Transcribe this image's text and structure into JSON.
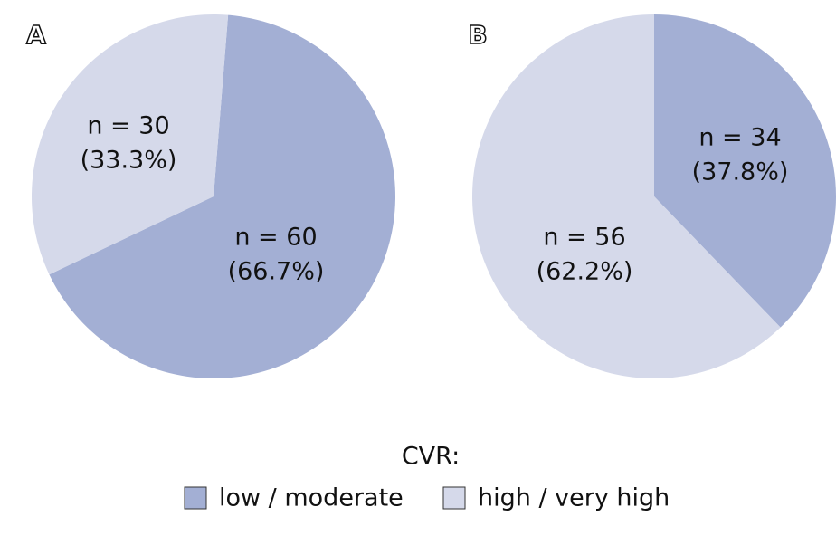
{
  "chart_data": [
    {
      "type": "pie",
      "panel": "A",
      "values": [
        60,
        30
      ],
      "value_labels": [
        "n = 60",
        "n = 30"
      ],
      "percents": [
        66.7,
        33.3
      ],
      "percent_labels": [
        "(66.7%)",
        "(33.3%)"
      ]
    },
    {
      "type": "pie",
      "panel": "B",
      "values": [
        34,
        56
      ],
      "value_labels": [
        "n = 34",
        "n = 56"
      ],
      "percents": [
        37.8,
        62.2
      ],
      "percent_labels": [
        "(37.8%)",
        "(62.2%)"
      ]
    }
  ],
  "legend": {
    "title": "CVR:",
    "series": [
      {
        "name": "low / moderate",
        "color": "#a3afd4"
      },
      {
        "name": "high / very high",
        "color": "#d5d9ea"
      }
    ]
  }
}
